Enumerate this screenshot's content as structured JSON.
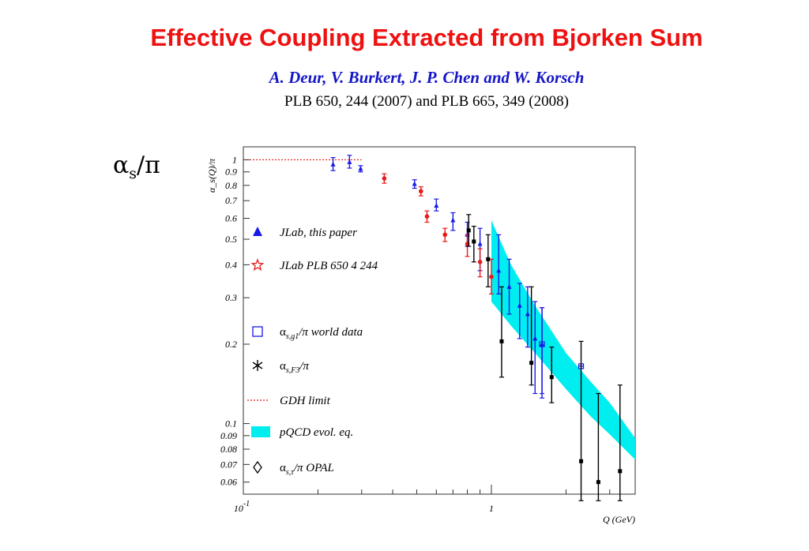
{
  "header": {
    "title": "Effective Coupling Extracted from Bjorken Sum",
    "authors": "A. Deur, V. Burkert, J. P. Chen and W. Korsch",
    "reference": "PLB 650, 244 (2007) and PLB 665, 349 (2008)"
  },
  "slide_label": {
    "symbol": "α",
    "subscript": "s",
    "suffix": "/π"
  },
  "chart_data": {
    "type": "scatter",
    "title": "",
    "xlabel": "Q (GeV)",
    "ylabel": "α_s(Q)/π",
    "xscale": "log",
    "yscale": "log",
    "xlim": [
      0.1,
      3.8
    ],
    "ylim": [
      0.054,
      1.12
    ],
    "x_tick_labels": [
      {
        "value": 0.1,
        "base": "10",
        "exp": "-1"
      },
      {
        "value": 1,
        "base": "1",
        "exp": ""
      }
    ],
    "y_tick_labels": [
      {
        "value": 1,
        "label": "1"
      },
      {
        "value": 0.9,
        "label": "0.9"
      },
      {
        "value": 0.8,
        "label": "0.8"
      },
      {
        "value": 0.7,
        "label": "0.7"
      },
      {
        "value": 0.6,
        "label": "0.6"
      },
      {
        "value": 0.5,
        "label": "0.5"
      },
      {
        "value": 0.4,
        "label": "0.4"
      },
      {
        "value": 0.3,
        "label": "0.3"
      },
      {
        "value": 0.2,
        "label": "0.2"
      },
      {
        "value": 0.1,
        "label": "0.1"
      },
      {
        "value": 0.09,
        "label": "0.09"
      },
      {
        "value": 0.08,
        "label": "0.08"
      },
      {
        "value": 0.07,
        "label": "0.07"
      },
      {
        "value": 0.06,
        "label": "0.06"
      }
    ],
    "legend": [
      {
        "key": "jlab_this",
        "symbol": "triangle",
        "color": "#1a1ae6",
        "text": "JLab, this paper"
      },
      {
        "key": "jlab_plb",
        "symbol": "star",
        "color": "#e61a1a",
        "text": "JLab PLB 650 4 244"
      },
      {
        "key": "world_g1",
        "symbol": "square",
        "color": "#1a1ae6",
        "alpha": "α",
        "sub": "s,g1",
        "rest": "/π world data"
      },
      {
        "key": "f3",
        "symbol": "asterisk",
        "color": "#000000",
        "alpha": "α",
        "sub": "s,F3",
        "rest": "/π"
      },
      {
        "key": "gdh",
        "symbol": "dashed-line",
        "color": "#e61a1a",
        "text": "GDH limit"
      },
      {
        "key": "pqcd",
        "symbol": "band",
        "color": "#00eef0",
        "text": "pQCD evol. eq."
      },
      {
        "key": "opal",
        "symbol": "diamond",
        "color": "#000000",
        "alpha": "α",
        "sub": "s,τ",
        "rest": "/π OPAL"
      }
    ],
    "series": [
      {
        "name": "JLab, this paper",
        "color": "#1a1ae6",
        "points": [
          {
            "x": 0.23,
            "y": 0.96,
            "lo": 0.91,
            "hi": 1.02
          },
          {
            "x": 0.268,
            "y": 0.98,
            "lo": 0.93,
            "hi": 1.04
          },
          {
            "x": 0.297,
            "y": 0.925,
            "lo": 0.9,
            "hi": 0.95
          },
          {
            "x": 0.49,
            "y": 0.81,
            "lo": 0.78,
            "hi": 0.84
          },
          {
            "x": 0.6,
            "y": 0.67,
            "lo": 0.64,
            "hi": 0.71
          },
          {
            "x": 0.7,
            "y": 0.59,
            "lo": 0.54,
            "hi": 0.63
          },
          {
            "x": 0.8,
            "y": 0.52,
            "lo": 0.47,
            "hi": 0.58
          },
          {
            "x": 0.9,
            "y": 0.48,
            "lo": 0.38,
            "hi": 0.55
          },
          {
            "x": 1.07,
            "y": 0.38,
            "lo": 0.31,
            "hi": 0.52
          },
          {
            "x": 1.18,
            "y": 0.33,
            "lo": 0.26,
            "hi": 0.42
          },
          {
            "x": 1.3,
            "y": 0.28,
            "lo": 0.21,
            "hi": 0.34
          },
          {
            "x": 1.4,
            "y": 0.26,
            "lo": 0.195,
            "hi": 0.33
          },
          {
            "x": 1.5,
            "y": 0.21,
            "lo": 0.13,
            "hi": 0.29
          },
          {
            "x": 1.6,
            "y": 0.2,
            "lo": 0.125,
            "hi": 0.275
          }
        ]
      },
      {
        "name": "JLab PLB 650 4 244",
        "color": "#e61a1a",
        "points": [
          {
            "x": 0.37,
            "y": 0.85,
            "lo": 0.815,
            "hi": 0.885
          },
          {
            "x": 0.52,
            "y": 0.76,
            "lo": 0.73,
            "hi": 0.79
          },
          {
            "x": 0.55,
            "y": 0.61,
            "lo": 0.58,
            "hi": 0.64
          },
          {
            "x": 0.65,
            "y": 0.52,
            "lo": 0.49,
            "hi": 0.55
          },
          {
            "x": 0.8,
            "y": 0.48,
            "lo": 0.43,
            "hi": 0.52
          },
          {
            "x": 0.9,
            "y": 0.41,
            "lo": 0.36,
            "hi": 0.46
          },
          {
            "x": 1.0,
            "y": 0.36,
            "lo": 0.31,
            "hi": 0.42
          }
        ]
      },
      {
        "name": "α_s,g1/π world data",
        "color": "#1a1ae6",
        "points": [
          {
            "x": 1.6,
            "y": 0.2,
            "lo": 0.13,
            "hi": 0.275
          },
          {
            "x": 2.3,
            "y": 0.165,
            "lo": 0.165,
            "hi": 0.165
          }
        ]
      },
      {
        "name": "α_s,F3/π",
        "color": "#000000",
        "points": [
          {
            "x": 0.81,
            "y": 0.54,
            "lo": 0.47,
            "hi": 0.62
          },
          {
            "x": 0.85,
            "y": 0.49,
            "lo": 0.41,
            "hi": 0.56
          },
          {
            "x": 0.97,
            "y": 0.42,
            "lo": 0.33,
            "hi": 0.52
          },
          {
            "x": 1.1,
            "y": 0.205,
            "lo": 0.15,
            "hi": 0.33
          },
          {
            "x": 1.45,
            "y": 0.17,
            "lo": 0.14,
            "hi": 0.33
          },
          {
            "x": 1.75,
            "y": 0.15,
            "lo": 0.12,
            "hi": 0.195
          },
          {
            "x": 2.3,
            "y": 0.072,
            "lo": 0.051,
            "hi": 0.205
          },
          {
            "x": 2.7,
            "y": 0.06,
            "lo": 0.051,
            "hi": 0.13
          },
          {
            "x": 3.3,
            "y": 0.066,
            "lo": 0.051,
            "hi": 0.14
          }
        ]
      }
    ],
    "gdh_limit": {
      "y": 1.0,
      "x_from": 0.1,
      "x_to": 0.3
    },
    "pqcd_band": {
      "x": [
        1.0,
        1.2,
        1.5,
        2.0,
        2.5,
        3.0,
        3.8
      ],
      "lower": [
        0.29,
        0.235,
        0.185,
        0.135,
        0.107,
        0.091,
        0.073
      ],
      "upper": [
        0.59,
        0.4,
        0.28,
        0.185,
        0.145,
        0.12,
        0.088
      ]
    }
  }
}
